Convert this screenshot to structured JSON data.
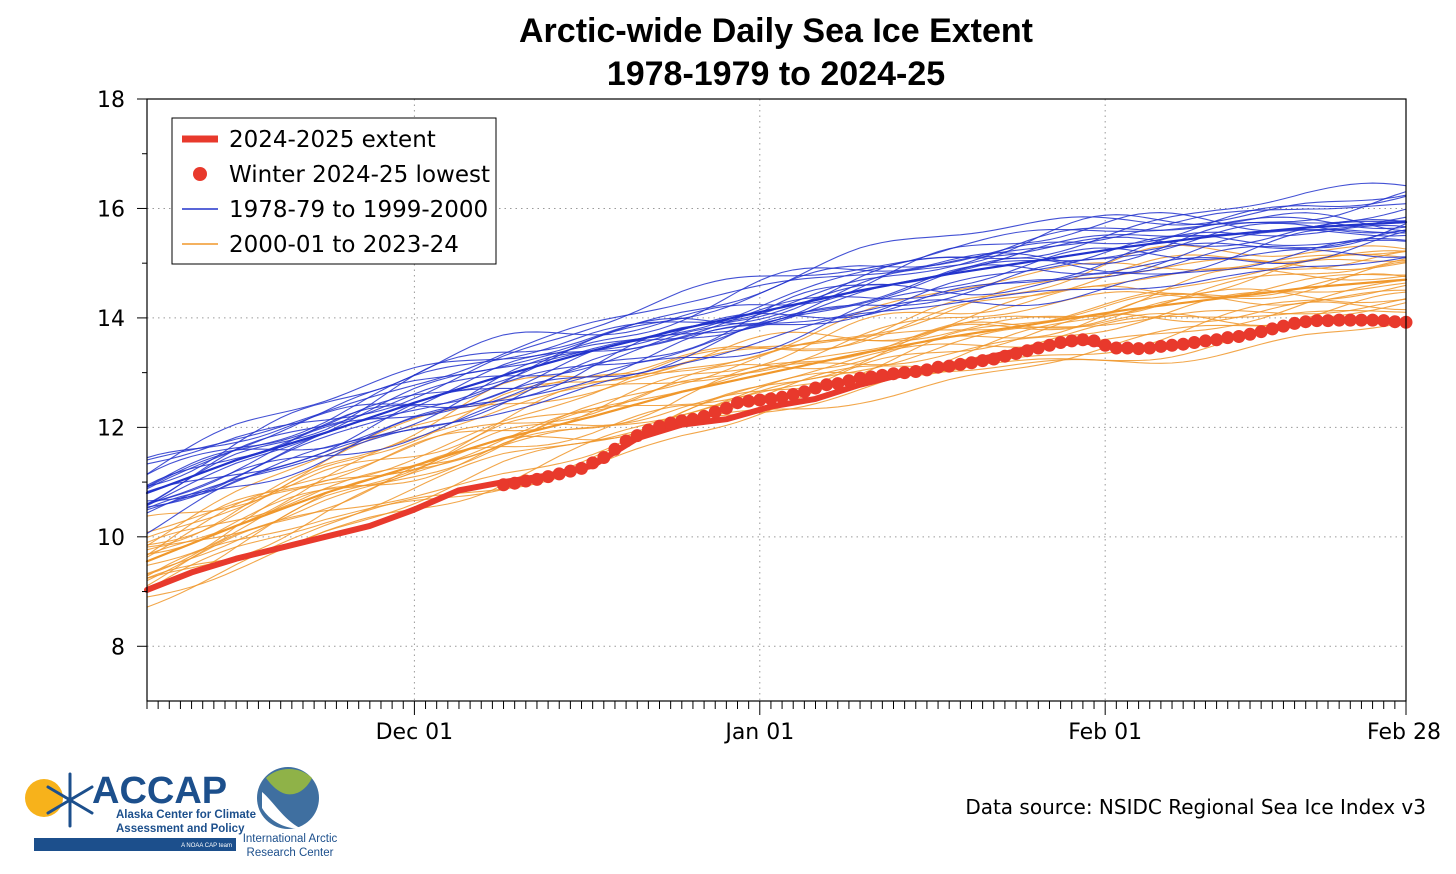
{
  "chart_data": {
    "type": "line",
    "title_line1": "Arctic-wide Daily Sea Ice Extent",
    "title_line2": "1978-1979 to 2024-25",
    "xlabel": "",
    "ylabel": "",
    "x_start": "Nov 07",
    "x_end": "Feb 28",
    "ylim": [
      7,
      18
    ],
    "yticks": [
      8,
      10,
      12,
      14,
      16,
      18
    ],
    "xticks": [
      {
        "label": "Dec 01",
        "day": 24
      },
      {
        "label": "Jan 01",
        "day": 55
      },
      {
        "label": "Feb 01",
        "day": 86
      },
      {
        "label": "Feb 28",
        "day": 113
      }
    ],
    "grid": true,
    "legend_position": "top-left",
    "legend": [
      {
        "label": "2024-2025 extent",
        "kind": "thick-line",
        "color": "#e8392c"
      },
      {
        "label": "Winter 2024-25 lowest",
        "kind": "dot",
        "color": "#e8392c"
      },
      {
        "label": "1978-79 to 1999-2000",
        "kind": "line",
        "color": "#2233cc"
      },
      {
        "label": "2000-01 to 2023-24",
        "kind": "line",
        "color": "#f0972a"
      }
    ],
    "series": [
      {
        "name": "2024-2025 extent",
        "color": "#e8392c",
        "x": [
          0,
          4,
          8,
          12,
          16,
          20,
          24,
          28,
          32,
          36,
          40,
          44,
          48,
          52,
          56,
          60,
          64,
          68,
          72,
          76,
          80,
          84,
          86,
          88,
          92,
          96,
          100,
          104,
          108,
          113
        ],
        "y": [
          9.03,
          9.35,
          9.6,
          9.8,
          10.0,
          10.2,
          10.5,
          10.85,
          11.0,
          11.12,
          11.3,
          11.8,
          12.05,
          12.15,
          12.38,
          12.52,
          12.78,
          12.98,
          13.1,
          13.3,
          13.48,
          13.58,
          13.5,
          13.42,
          13.48,
          13.6,
          13.75,
          13.93,
          13.96,
          13.92
        ]
      },
      {
        "name": "Winter 2024-25 lowest",
        "color": "#e8392c",
        "x": [
          32,
          33,
          34,
          35,
          36,
          37,
          38,
          39,
          40,
          41,
          42,
          43,
          44,
          45,
          46,
          47,
          48,
          49,
          50,
          51,
          52,
          53,
          54,
          55,
          56,
          57,
          58,
          59,
          60,
          61,
          62,
          63,
          64,
          65,
          66,
          67,
          68,
          69,
          70,
          71,
          72,
          73,
          74,
          75,
          76,
          77,
          78,
          79,
          80,
          81,
          82,
          83,
          84,
          85,
          86,
          87,
          88,
          89,
          90,
          91,
          92,
          93,
          94,
          95,
          96,
          97,
          98,
          99,
          100,
          101,
          102,
          103,
          104,
          105,
          106,
          107,
          108,
          109,
          110,
          111,
          112,
          113
        ],
        "y": [
          10.95,
          10.98,
          11.02,
          11.05,
          11.1,
          11.15,
          11.2,
          11.25,
          11.35,
          11.45,
          11.6,
          11.75,
          11.85,
          11.95,
          12.02,
          12.08,
          12.12,
          12.15,
          12.2,
          12.28,
          12.35,
          12.45,
          12.48,
          12.5,
          12.52,
          12.55,
          12.6,
          12.65,
          12.72,
          12.78,
          12.8,
          12.85,
          12.9,
          12.92,
          12.95,
          12.98,
          13.0,
          13.02,
          13.05,
          13.1,
          13.12,
          13.15,
          13.18,
          13.22,
          13.25,
          13.3,
          13.35,
          13.4,
          13.45,
          13.5,
          13.55,
          13.58,
          13.6,
          13.58,
          13.5,
          13.45,
          13.45,
          13.44,
          13.45,
          13.48,
          13.5,
          13.52,
          13.55,
          13.58,
          13.6,
          13.64,
          13.66,
          13.7,
          13.75,
          13.8,
          13.85,
          13.9,
          13.93,
          13.95,
          13.95,
          13.96,
          13.96,
          13.96,
          13.96,
          13.95,
          13.93,
          13.92
        ]
      },
      {
        "name": "1978-79 to 1999-2000",
        "color": "#2233cc",
        "x": [
          0,
          8,
          16,
          24,
          32,
          40,
          48,
          56,
          64,
          72,
          80,
          88,
          96,
          104,
          113
        ],
        "y": [
          10.8,
          11.4,
          11.9,
          12.45,
          12.95,
          13.4,
          13.8,
          14.15,
          14.5,
          14.8,
          15.05,
          15.3,
          15.5,
          15.65,
          15.75
        ]
      },
      {
        "name": "2000-01 to 2023-24",
        "color": "#f0972a",
        "x": [
          0,
          8,
          16,
          24,
          32,
          40,
          48,
          56,
          64,
          72,
          80,
          88,
          96,
          104,
          113
        ],
        "y": [
          9.55,
          10.2,
          10.8,
          11.3,
          11.8,
          12.2,
          12.65,
          13.0,
          13.35,
          13.65,
          13.9,
          14.15,
          14.35,
          14.55,
          14.7
        ]
      }
    ]
  },
  "footer": {
    "source": "Data source: NSIDC Regional Sea Ice Index v3",
    "logo_accap": "ACCAP",
    "logo_accap_line1": "Alaska Center for Climate",
    "logo_accap_line2": "Assessment and Policy",
    "logo_accap_tag": "A NOAA CAP team",
    "logo_iarc_line1": "International Arctic",
    "logo_iarc_line2": "Research Center"
  }
}
